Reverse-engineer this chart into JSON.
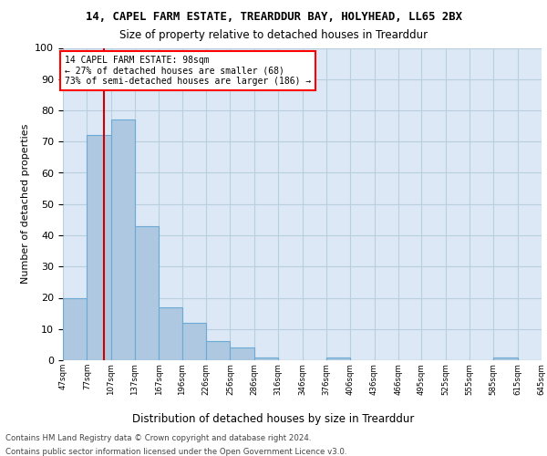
{
  "title1": "14, CAPEL FARM ESTATE, TREARDDUR BAY, HOLYHEAD, LL65 2BX",
  "title2": "Size of property relative to detached houses in Trearddur",
  "xlabel": "Distribution of detached houses by size in Trearddur",
  "ylabel": "Number of detached properties",
  "bar_color": "#adc8e0",
  "bar_edge_color": "#6aaad4",
  "property_line_color": "#cc0000",
  "annotation_text": "14 CAPEL FARM ESTATE: 98sqm\n← 27% of detached houses are smaller (68)\n73% of semi-detached houses are larger (186) →",
  "bin_edges": [
    47,
    77,
    107,
    137,
    167,
    196,
    226,
    256,
    286,
    316,
    346,
    376,
    406,
    436,
    466,
    495,
    525,
    555,
    585,
    615,
    645
  ],
  "values": [
    20,
    72,
    77,
    43,
    17,
    12,
    6,
    4,
    1,
    0,
    0,
    1,
    0,
    0,
    0,
    0,
    0,
    0,
    1,
    0
  ],
  "tick_labels": [
    "47sqm",
    "77sqm",
    "107sqm",
    "137sqm",
    "167sqm",
    "196sqm",
    "226sqm",
    "256sqm",
    "286sqm",
    "316sqm",
    "346sqm",
    "376sqm",
    "406sqm",
    "436sqm",
    "466sqm",
    "495sqm",
    "525sqm",
    "555sqm",
    "585sqm",
    "615sqm",
    "645sqm"
  ],
  "property_sqm": 98,
  "ylim": [
    0,
    100
  ],
  "yticks": [
    0,
    10,
    20,
    30,
    40,
    50,
    60,
    70,
    80,
    90,
    100
  ],
  "background_color": "#ffffff",
  "plot_bg_color": "#dce8f5",
  "grid_color": "#b8cfe0",
  "footer1": "Contains HM Land Registry data © Crown copyright and database right 2024.",
  "footer2": "Contains public sector information licensed under the Open Government Licence v3.0."
}
